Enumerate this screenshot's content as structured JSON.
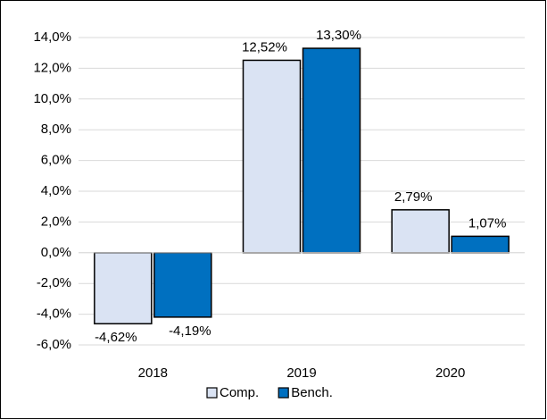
{
  "chart_data": {
    "type": "bar",
    "categories": [
      "2018",
      "2019",
      "2020"
    ],
    "series": [
      {
        "name": "Comp.",
        "color": "#dae3f3",
        "values": [
          -4.62,
          12.52,
          2.79
        ],
        "value_labels": [
          "-4,62%",
          "12,52%",
          "2,79%"
        ]
      },
      {
        "name": "Bench.",
        "color": "#0070c0",
        "values": [
          -4.19,
          13.3,
          1.07
        ],
        "value_labels": [
          "-4,19%",
          "13,30%",
          "1,07%"
        ]
      }
    ],
    "ylim": [
      -6,
      14
    ],
    "yticks": [
      {
        "value": -6,
        "label": "-6,0%"
      },
      {
        "value": -4,
        "label": "-4,0%"
      },
      {
        "value": -2,
        "label": "-2,0%"
      },
      {
        "value": 0,
        "label": "0,0%"
      },
      {
        "value": 2,
        "label": "2,0%"
      },
      {
        "value": 4,
        "label": "4,0%"
      },
      {
        "value": 6,
        "label": "6,0%"
      },
      {
        "value": 8,
        "label": "8,0%"
      },
      {
        "value": 10,
        "label": "10,0%"
      },
      {
        "value": 12,
        "label": "12,0%"
      },
      {
        "value": 14,
        "label": "14,0%"
      }
    ],
    "grid": true,
    "legend": "bottom"
  }
}
